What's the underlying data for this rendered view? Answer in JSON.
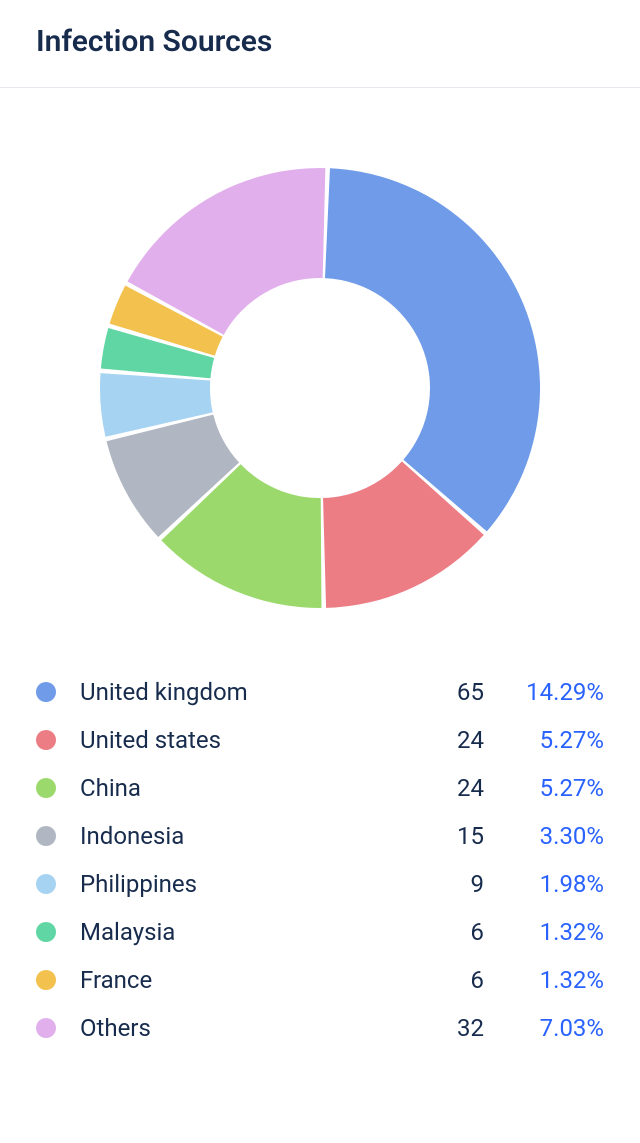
{
  "title": "Infection Sources",
  "percent_color": "#2962ff",
  "text_color": "#172b4d",
  "divider_color": "#e5e8ec",
  "chart": {
    "type": "donut",
    "size": 480,
    "outer_radius": 220,
    "inner_radius": 110,
    "gap_deg": 1.2,
    "start_angle_deg": -88,
    "background": "#ffffff",
    "slices": [
      {
        "label": "United kingdom",
        "count": 65,
        "percent": "14.29%",
        "color": "#6f9be8"
      },
      {
        "label": "United states",
        "count": 24,
        "percent": "5.27%",
        "color": "#ec7d85"
      },
      {
        "label": "China",
        "count": 24,
        "percent": "5.27%",
        "color": "#9cd96d"
      },
      {
        "label": "Indonesia",
        "count": 15,
        "percent": "3.30%",
        "color": "#b0b7c3"
      },
      {
        "label": "Philippines",
        "count": 9,
        "percent": "1.98%",
        "color": "#a7d3f2"
      },
      {
        "label": "Malaysia",
        "count": 6,
        "percent": "1.32%",
        "color": "#5fd6a4"
      },
      {
        "label": "France",
        "count": 6,
        "percent": "1.32%",
        "color": "#f2c14e"
      },
      {
        "label": "Others",
        "count": 32,
        "percent": "7.03%",
        "color": "#e1b0ec"
      }
    ]
  }
}
